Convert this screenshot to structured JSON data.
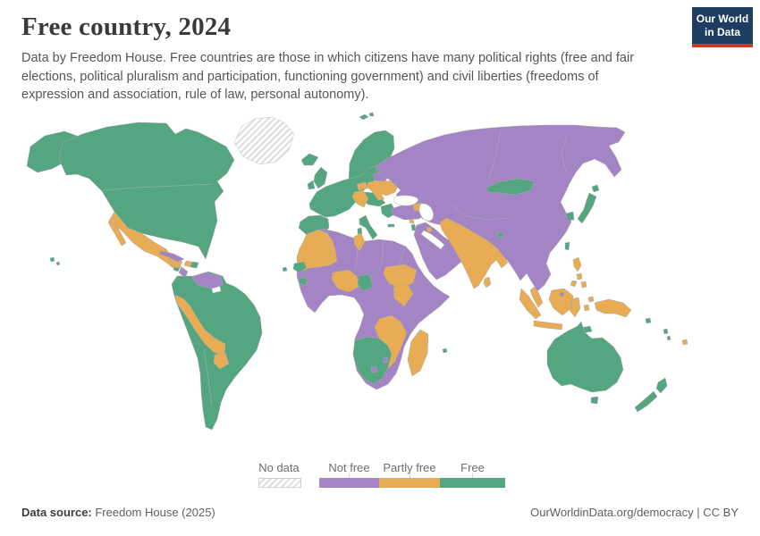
{
  "header": {
    "title": "Free country, 2024",
    "subtitle": "Data by Freedom House. Free countries are those in which citizens have many political rights (free and fair elections, political pluralism and participation, functioning government) and civil liberties (freedoms of expression and association, rule of law, personal autonomy)."
  },
  "logo": {
    "line1": "Our World",
    "line2": "in Data",
    "bg_color": "#1d3d63",
    "accent_color": "#d0342c"
  },
  "legend": {
    "no_data_label": "No data",
    "categories": [
      {
        "key": "not_free",
        "label": "Not free",
        "color": "#a385c6"
      },
      {
        "key": "partly_free",
        "label": "Partly free",
        "color": "#e8ad54"
      },
      {
        "key": "free",
        "label": "Free",
        "color": "#54a681"
      }
    ]
  },
  "footer": {
    "source_label": "Data source:",
    "source_value": " Freedom House (2025)",
    "right_text": "OurWorldinData.org/democracy | CC BY"
  },
  "chart_data": {
    "type": "choropleth-world-map",
    "title": "Free country, 2024",
    "categories": [
      "Not free",
      "Partly free",
      "Free",
      "No data"
    ],
    "legend_position": "bottom-center",
    "status_colors": {
      "not_free": "#a385c6",
      "partly_free": "#e8ad54",
      "free": "#54a681",
      "water": "#ffffff"
    },
    "regions": {
      "greenland": "no_data",
      "alaska": "free",
      "canada_usa": "free",
      "hawaii": "free",
      "mexico_central": "partly_free",
      "nicaragua": "not_free",
      "costa_rica_panama": "free",
      "cuba": "not_free",
      "haiti": "partly_free",
      "dominican": "free",
      "jamaica": "free",
      "trinidad": "free",
      "sa_main": "free",
      "french_guiana": "water",
      "venezuela": "not_free",
      "andes": "partly_free",
      "paraguay": "partly_free",
      "iceland": "free",
      "uk": "free",
      "ireland": "free",
      "scandinavia": "free",
      "denmark": "free",
      "europe_main": "free",
      "iberia": "free",
      "italy": "free",
      "greece": "free",
      "romania_bulgaria": "free",
      "hungary": "partly_free",
      "balkans": "partly_free",
      "ukraine": "partly_free",
      "belarus": "not_free",
      "russia_asia": "not_free",
      "turkey": "not_free",
      "caucasus": "partly_free",
      "black_sea": "water",
      "caspian_sea": "water",
      "persian_gulf": "water",
      "arabia": "not_free",
      "kuwait": "partly_free",
      "israel": "free",
      "lebanon": "partly_free",
      "africa_main": "not_free",
      "nw_africa": "partly_free",
      "senegal": "free",
      "cape_verde": "free",
      "tunisia": "partly_free",
      "ivory_coast": "partly_free",
      "ghana": "free",
      "liberia": "free",
      "nigeria": "partly_free",
      "kenya": "partly_free",
      "zambezi": "partly_free",
      "madagascar": "partly_free",
      "mauritius": "free",
      "southern_africa": "free",
      "lesotho": "not_free",
      "eswatini": "not_free",
      "india_pakistan": "partly_free",
      "sri_lanka": "partly_free",
      "bhutan": "free",
      "mongolia": "free",
      "south_korea": "free",
      "japan": "free",
      "taiwan": "free",
      "philippines": "partly_free",
      "malaysia_indonesia": "partly_free",
      "brunei": "not_free",
      "new_guinea": "partly_free",
      "timor": "free",
      "australia": "free",
      "new_zealand": "free",
      "fiji": "partly_free",
      "vanuatu_solomons": "free",
      "svalbard": "free"
    }
  }
}
